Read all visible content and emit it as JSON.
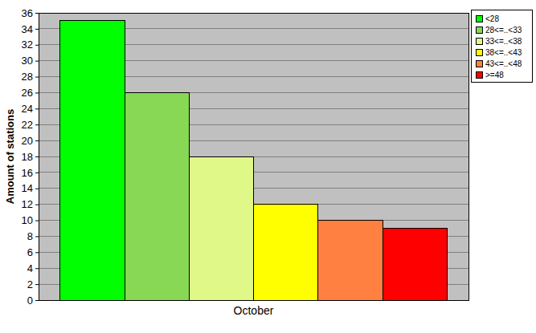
{
  "chart_data": {
    "type": "bar",
    "y_label": "Amount of stations",
    "categories": [
      "October"
    ],
    "series": [
      {
        "name": "<28",
        "color": "#00ff00",
        "values": [
          35
        ]
      },
      {
        "name": "28<=..<33",
        "color": "#88d855",
        "values": [
          26
        ]
      },
      {
        "name": "33<=..<38",
        "color": "#e0f888",
        "values": [
          18
        ]
      },
      {
        "name": "38<=..<43",
        "color": "#ffff00",
        "values": [
          12
        ]
      },
      {
        "name": "43<=..<48",
        "color": "#ff8040",
        "values": [
          10
        ]
      },
      {
        "name": ">=48",
        "color": "#ff0000",
        "values": [
          9
        ]
      }
    ],
    "ylim": [
      0,
      36
    ],
    "yticks": [
      0,
      2,
      4,
      6,
      8,
      10,
      12,
      14,
      16,
      18,
      20,
      22,
      24,
      26,
      28,
      30,
      32,
      34,
      36
    ],
    "grid": true,
    "legend": "top-right"
  }
}
